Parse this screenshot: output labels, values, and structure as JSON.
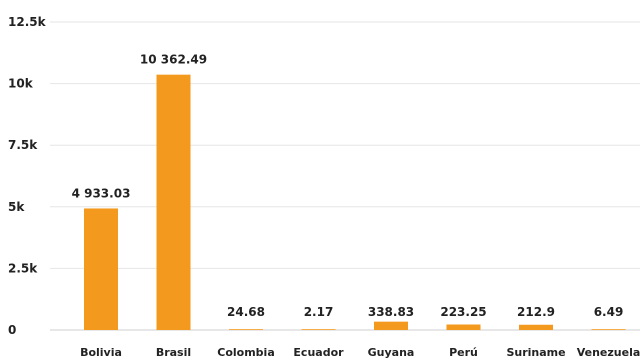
{
  "chart_data": {
    "type": "bar",
    "title": "",
    "xlabel": "",
    "ylabel": "",
    "categories": [
      "Bolivia",
      "Brasil",
      "Colombia",
      "Ecuador",
      "Guyana",
      "Perú",
      "Suriname",
      "Venezuela"
    ],
    "values": [
      4933.03,
      10362.49,
      24.68,
      2.17,
      338.83,
      223.25,
      212.9,
      6.49
    ],
    "data_labels": [
      "4 933.03",
      "10 362.49",
      "24.68",
      "2.17",
      "338.83",
      "223.25",
      "212.9",
      "6.49"
    ],
    "ylim": [
      0,
      12500
    ],
    "yticks": [
      0,
      2500,
      5000,
      7500,
      10000,
      12500
    ],
    "ytick_labels": [
      "0",
      "2.5k",
      "5k",
      "7.5k",
      "10k",
      "12.5k"
    ],
    "grid": true,
    "legend": "none",
    "bar_color": "#f39a1e"
  }
}
